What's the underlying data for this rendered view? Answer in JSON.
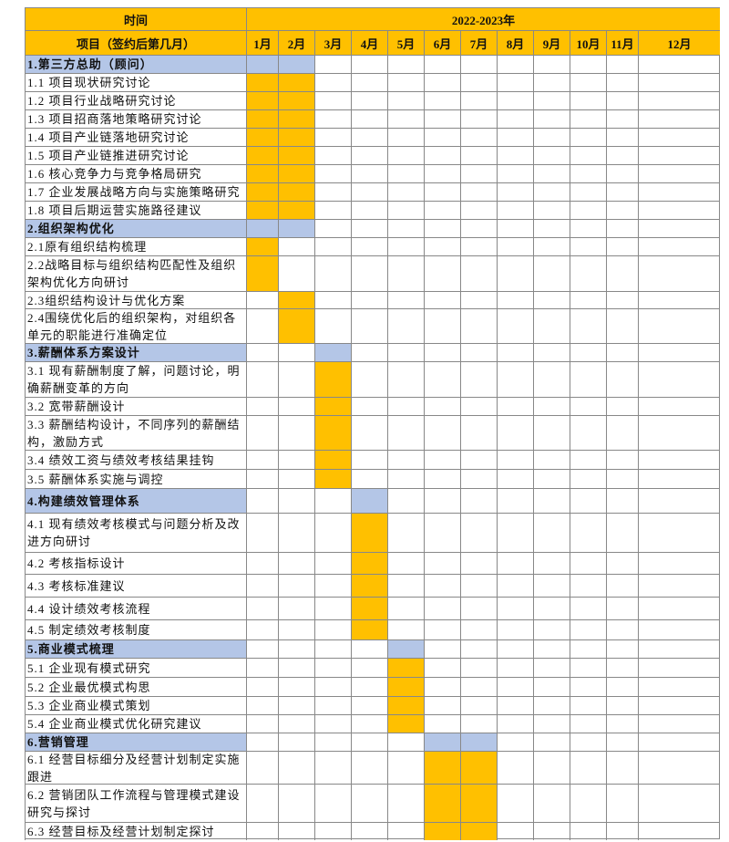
{
  "header": {
    "time": "时间",
    "period": "2022-2023年",
    "project": "项目（签约后第几月）",
    "months": [
      "1月",
      "2月",
      "3月",
      "4月",
      "5月",
      "6月",
      "7月",
      "8月",
      "9月",
      "10月",
      "11月",
      "12月"
    ]
  },
  "rows": [
    {
      "label": "1.第三方总助（顾问）",
      "section": true,
      "months": [
        1,
        2
      ]
    },
    {
      "label": "1.1  项目现状研究讨论",
      "months": [
        1,
        2
      ]
    },
    {
      "label": "1.2  项目行业战略研究讨论",
      "months": [
        1,
        2
      ]
    },
    {
      "label": "1.3  项目招商落地策略研究讨论",
      "months": [
        1,
        2
      ]
    },
    {
      "label": "1.4  项目产业链落地研究讨论",
      "months": [
        1,
        2
      ]
    },
    {
      "label": "1.5  项目产业链推进研究讨论",
      "months": [
        1,
        2
      ]
    },
    {
      "label": "1.6  核心竞争力与竞争格局研究",
      "months": [
        1,
        2
      ]
    },
    {
      "label": "1.7  企业发展战略方向与实施策略研究",
      "months": [
        1,
        2
      ]
    },
    {
      "label": "1.8  项目后期运营实施路径建议",
      "months": [
        1,
        2
      ]
    },
    {
      "label": "2.组织架构优化",
      "section": true,
      "months": [
        1,
        2
      ]
    },
    {
      "label": "2.1原有组织结构梳理",
      "months": [
        1
      ]
    },
    {
      "label": "2.2战略目标与组织结构匹配性及组织架构优化方向研讨",
      "months": [
        1
      ]
    },
    {
      "label": "2.3组织结构设计与优化方案",
      "months": [
        2
      ]
    },
    {
      "label": "2.4围绕优化后的组织架构，对组织各单元的职能进行准确定位",
      "months": [
        2
      ]
    },
    {
      "label": "3.薪酬体系方案设计",
      "section": true,
      "months": [
        3
      ]
    },
    {
      "label": "3.1 现有薪酬制度了解，问题讨论，明确薪酬变革的方向",
      "months": [
        3
      ]
    },
    {
      "label": "3.2 宽带薪酬设计",
      "months": [
        3
      ]
    },
    {
      "label": "3.3 薪酬结构设计，不同序列的薪酬结构，激励方式",
      "months": [
        3
      ]
    },
    {
      "label": "3.4 绩效工资与绩效考核结果挂钩",
      "months": [
        3
      ]
    },
    {
      "label": "3.5 薪酬体系实施与调控",
      "months": [
        3
      ]
    },
    {
      "label": "4.构建绩效管理体系",
      "section": true,
      "months": [
        4
      ]
    },
    {
      "label": "4.1 现有绩效考核模式与问题分析及改进方向研讨",
      "months": [
        4
      ]
    },
    {
      "label": "4.2 考核指标设计",
      "months": [
        4
      ]
    },
    {
      "label": "4.3 考核标准建议",
      "months": [
        4
      ]
    },
    {
      "label": "4.4 设计绩效考核流程",
      "months": [
        4
      ]
    },
    {
      "label": "4.5 制定绩效考核制度",
      "months": [
        4
      ]
    },
    {
      "label": "5.商业模式梳理",
      "section": true,
      "months": [
        5
      ]
    },
    {
      "label": "5.1 企业现有模式研究",
      "months": [
        5
      ]
    },
    {
      "label": "5.2 企业最优模式构思",
      "months": [
        5
      ]
    },
    {
      "label": "5.3 企业商业模式策划",
      "months": [
        5
      ]
    },
    {
      "label": "5.4 企业商业模式优化研究建议",
      "months": [
        5
      ]
    },
    {
      "label": "6.营销管理",
      "section": true,
      "months": [
        6,
        7
      ]
    },
    {
      "label": "6.1 经营目标细分及经营计划制定实施跟进",
      "months": [
        6,
        7
      ]
    },
    {
      "label": "6.2 营销团队工作流程与管理模式建设研究与探讨",
      "months": [
        6,
        7
      ]
    },
    {
      "label": "6.3 经营目标及经营计划制定探讨",
      "months": [
        6,
        7
      ]
    }
  ]
}
